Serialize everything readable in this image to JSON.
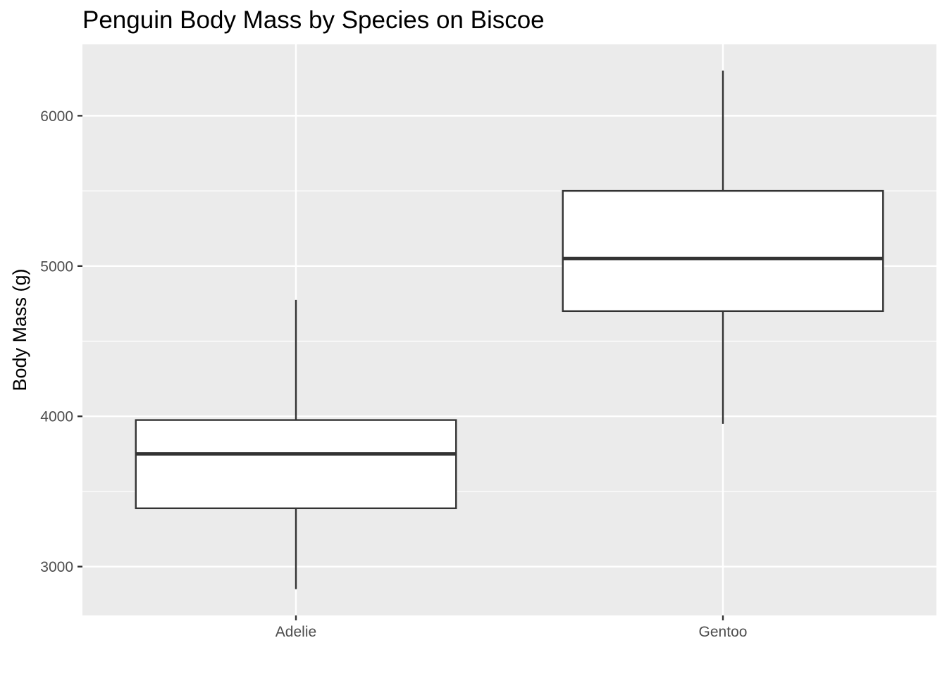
{
  "chart_data": {
    "type": "boxplot",
    "title": "Penguin Body Mass by Species on Biscoe",
    "xlabel": "",
    "ylabel": "Body Mass (g)",
    "categories": [
      "Adelie",
      "Gentoo"
    ],
    "boxes": [
      {
        "category": "Adelie",
        "min": 2850,
        "q1": 3388,
        "median": 3750,
        "q3": 3975,
        "max": 4775
      },
      {
        "category": "Gentoo",
        "min": 3950,
        "q1": 4700,
        "median": 5050,
        "q3": 5500,
        "max": 6300
      }
    ],
    "ylim": [
      2675,
      6475
    ],
    "yticks": [
      3000,
      4000,
      5000,
      6000
    ],
    "ytick_labels": [
      "3000",
      "4000",
      "5000",
      "6000"
    ],
    "grid": true,
    "colors": {
      "panel_background": "#ebebeb",
      "grid_line": "#ffffff",
      "box_fill": "#ffffff",
      "box_stroke": "#333333",
      "axis_text": "#4d4d4d",
      "tick_mark": "#333333"
    }
  }
}
